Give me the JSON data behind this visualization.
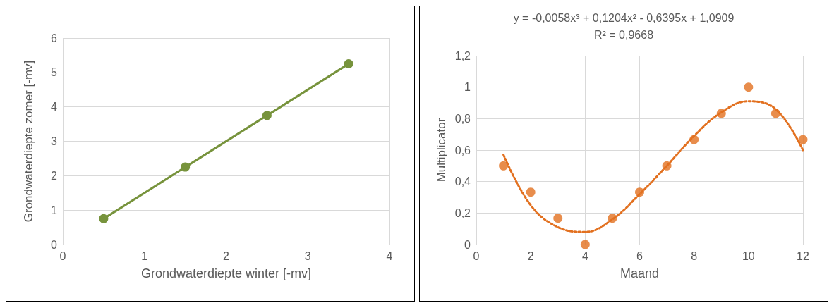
{
  "chart_data": [
    {
      "type": "line",
      "xlabel": "Grondwaterdiepte winter [-mv]",
      "ylabel": "Grondwaterdiepte zomer [-mv]",
      "x": [
        0.5,
        1.5,
        2.5,
        3.5
      ],
      "series": [
        {
          "color": "#77933c",
          "values": [
            0.75,
            2.25,
            3.75,
            5.25
          ]
        }
      ],
      "xlim": [
        0,
        4
      ],
      "xticks": [
        0,
        1,
        2,
        3,
        4
      ],
      "ylim": [
        0,
        6
      ],
      "yticks": [
        0,
        1,
        2,
        3,
        4,
        5,
        6
      ],
      "grid": true,
      "marker": "circle",
      "line_style": "solid"
    },
    {
      "type": "scatter",
      "xlabel": "Maand",
      "ylabel": "Multiplicator",
      "annotations": [
        "y = -0,0058x³ + 0,1204x² - 0,6395x + 1,0909",
        "R² = 0,9668"
      ],
      "x": [
        1,
        2,
        3,
        4,
        5,
        6,
        7,
        8,
        9,
        10,
        11,
        12
      ],
      "series": [
        {
          "color": "#e2701f",
          "values": [
            0.5,
            0.333,
            0.167,
            0,
            0.167,
            0.333,
            0.5,
            0.667,
            0.833,
            1,
            0.833,
            0.667
          ],
          "marker": "circle"
        },
        {
          "type": "line",
          "color": "#e2701f",
          "line_style": "dotted",
          "marker": "none",
          "x": [
            1,
            2,
            3,
            4,
            5,
            6,
            7,
            8,
            9,
            10,
            11,
            12
          ],
          "values": [
            0.57,
            0.25,
            0.11,
            0.08,
            0.16,
            0.32,
            0.5,
            0.69,
            0.84,
            0.91,
            0.86,
            0.6
          ]
        }
      ],
      "xlim": [
        0,
        12
      ],
      "xticks": [
        0,
        2,
        4,
        6,
        8,
        10,
        12
      ],
      "ylim": [
        0,
        1.2
      ],
      "yticks": [
        0,
        {
          "value": 0.2,
          "label": "0,2"
        },
        {
          "value": 0.4,
          "label": "0,4"
        },
        {
          "value": 0.6,
          "label": "0,6"
        },
        {
          "value": 0.8,
          "label": "0,8"
        },
        1,
        {
          "value": 1.2,
          "label": "1,2"
        }
      ],
      "grid": true
    }
  ]
}
